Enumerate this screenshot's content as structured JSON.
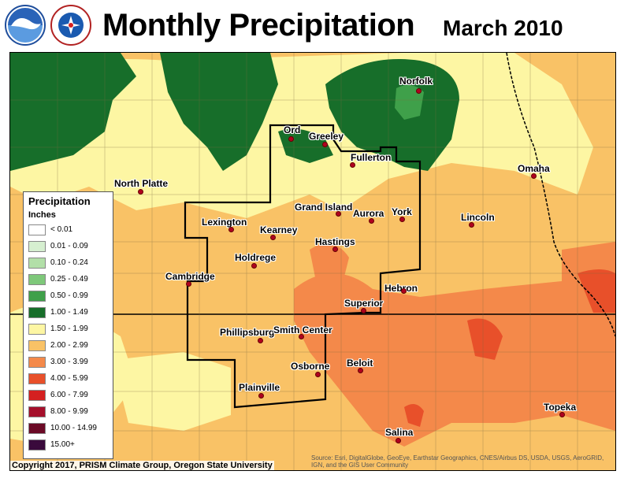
{
  "header": {
    "title": "Monthly Precipitation",
    "date": "March 2010",
    "logos": [
      "noaa-logo",
      "national-weather-service-logo"
    ]
  },
  "legend": {
    "title": "Precipitation",
    "units": "Inches",
    "items": [
      {
        "label": "< 0.01",
        "color": "#ffffff"
      },
      {
        "label": "0.01 - 0.09",
        "color": "#d6efd0"
      },
      {
        "label": "0.10 - 0.24",
        "color": "#b2dfa8"
      },
      {
        "label": "0.25 - 0.49",
        "color": "#7ec87a"
      },
      {
        "label": "0.50 - 0.99",
        "color": "#3fa04a"
      },
      {
        "label": "1.00 - 1.49",
        "color": "#176e2a"
      },
      {
        "label": "1.50 - 1.99",
        "color": "#fdf6a3"
      },
      {
        "label": "2.00 - 2.99",
        "color": "#f9c266"
      },
      {
        "label": "3.00 - 3.99",
        "color": "#f4894a"
      },
      {
        "label": "4.00 - 5.99",
        "color": "#e8502a"
      },
      {
        "label": "6.00 - 7.99",
        "color": "#d42020"
      },
      {
        "label": "8.00 - 9.99",
        "color": "#a50f2b"
      },
      {
        "label": "10.00 - 14.99",
        "color": "#6b0a26"
      },
      {
        "label": "15.00+",
        "color": "#3a0a3c"
      }
    ]
  },
  "cities": [
    {
      "name": "Norfolk"
    },
    {
      "name": "Ord"
    },
    {
      "name": "Greeley"
    },
    {
      "name": "Fullerton"
    },
    {
      "name": "Omaha"
    },
    {
      "name": "North Platte"
    },
    {
      "name": "Grand Island"
    },
    {
      "name": "Aurora"
    },
    {
      "name": "York"
    },
    {
      "name": "Lincoln"
    },
    {
      "name": "Lexington"
    },
    {
      "name": "Kearney"
    },
    {
      "name": "Hastings"
    },
    {
      "name": "Holdrege"
    },
    {
      "name": "Cambridge"
    },
    {
      "name": "Hebron"
    },
    {
      "name": "Superior"
    },
    {
      "name": "Phillipsburg"
    },
    {
      "name": "Smith Center"
    },
    {
      "name": "Osborne"
    },
    {
      "name": "Beloit"
    },
    {
      "name": "Plainville"
    },
    {
      "name": "Topeka"
    },
    {
      "name": "Salina"
    }
  ],
  "footer": {
    "copyright": "Copyright 2017, PRISM Climate Group, Oregon State University",
    "source": "Source: Esri, DigitalGlobe, GeoEye, Earthstar Geographics, CNES/Airbus DS, USDA, USGS, AeroGRID, IGN, and the GIS User Community"
  }
}
